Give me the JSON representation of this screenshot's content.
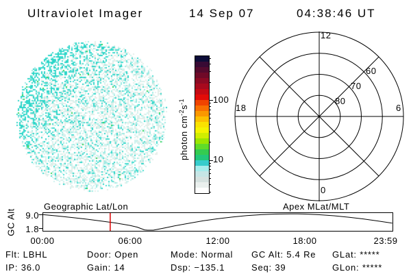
{
  "header": {
    "title": "Ultraviolet Imager",
    "date": "14 Sep 07",
    "time": "04:38:46 UT"
  },
  "uvi_image": {
    "palette": {
      "background": "#ffffff",
      "pale_mint": "#e4eee9",
      "pale_cyan": "#cdf2ee",
      "light_cyan": "#9debe3",
      "cyan": "#45ddd1",
      "deep_cyan": "#2bd5c8",
      "green": "#2ed457"
    }
  },
  "colorbar": {
    "unit": {
      "prefix": "photon cm",
      "exp1": "-2",
      "mid": "s",
      "exp2": "-1"
    },
    "label_100": "100",
    "label_10": "10",
    "scale": "log",
    "major_ticks": [
      100,
      10
    ],
    "minor_ticks": [
      500,
      400,
      300,
      200,
      90,
      80,
      70,
      60,
      50,
      40,
      30,
      20,
      9,
      8,
      7,
      6,
      5,
      4,
      3
    ],
    "palette_top_to_bottom": [
      "#0d0d38",
      "#380a34",
      "#540a2e",
      "#700a28",
      "#8c0a24",
      "#a80a1e",
      "#c40a14",
      "#e20c08",
      "#f04400",
      "#f87000",
      "#fa9800",
      "#fcc000",
      "#fae200",
      "#f4f400",
      "#d0ee00",
      "#9ce600",
      "#60dc28",
      "#34cc50",
      "#22c87a",
      "#36cccc",
      "#a6ecec",
      "#c6e6e6",
      "#d6e2e0",
      "#eaf0ee",
      "#ffffff"
    ]
  },
  "polar": {
    "hour_top": "12",
    "hour_left": "18",
    "hour_right": "6",
    "hour_bottom": "0",
    "lat_60": "60",
    "lat_70": "70",
    "lat_80": "80"
  },
  "bottom_plot": {
    "ylabel": "GC Alt",
    "left_title": "Geographic Lat/Lon",
    "right_title": "Apex MLat/MLT",
    "ytick_top": "9.0",
    "ytick_bottom": "1.8",
    "xticks": [
      "00:00",
      "06:00",
      "12:00",
      "18:00",
      "23:59"
    ],
    "marker_color": "#dd0000"
  },
  "footer": {
    "row1": [
      "Flt: LBHL",
      "Door: Open",
      "Mode: Normal",
      "GC Alt: 5.4 Re",
      "GLat: *****"
    ],
    "row2": [
      "IP: 36.0",
      "Gain: 14",
      "Dsp: −135.1",
      "Seq: 39",
      "GLon: *****"
    ]
  },
  "chart_data": [
    {
      "type": "heatmap",
      "name": "uvi-detector-image",
      "shape": "disk",
      "description": "Circular FUV detector image of near-uniform speckle noise (~1-6 photon cm-2 s-1, pale cyan/white), with slightly enhanced cyan emission along the upper-left limb"
    },
    {
      "type": "colorbar",
      "label": "photon cm-2 s-1",
      "scale": "log",
      "labeled_ticks": [
        10,
        100
      ],
      "range_approx": [
        3,
        500
      ]
    },
    {
      "type": "polar-grid",
      "title": "Apex MLat/MLT",
      "mlt_hour_labels": [
        12,
        18,
        6,
        0
      ],
      "mlat_rings": [
        80,
        70,
        60,
        50
      ],
      "spoke_interval_mlt_hours": 3
    },
    {
      "type": "line",
      "title": "GC Alt vs UT",
      "ylabel": "GC Alt",
      "yticks": [
        9.0,
        1.8
      ],
      "xtick_labels": [
        "00:00",
        "06:00",
        "12:00",
        "18:00",
        "23:59"
      ],
      "x_hours": [
        0,
        1,
        2,
        3,
        4,
        5,
        6,
        6.5,
        7,
        7.2,
        7.6,
        8,
        8.5,
        9,
        10,
        11,
        12,
        13,
        14,
        15,
        16,
        17,
        17.5,
        18,
        19,
        20,
        21,
        22,
        23,
        23.98
      ],
      "y_re": [
        9.1,
        8.35,
        7.55,
        6.7,
        5.75,
        4.7,
        3.4,
        2.5,
        1.1,
        0.95,
        0.95,
        1.5,
        2.3,
        3.1,
        4.5,
        5.8,
        6.9,
        7.8,
        8.55,
        9.05,
        9.35,
        9.45,
        9.45,
        9.35,
        9.0,
        8.45,
        7.7,
        6.8,
        5.75,
        4.6
      ],
      "current_time_marker_hours": 4.646,
      "marker_color": "#dd0000"
    }
  ]
}
